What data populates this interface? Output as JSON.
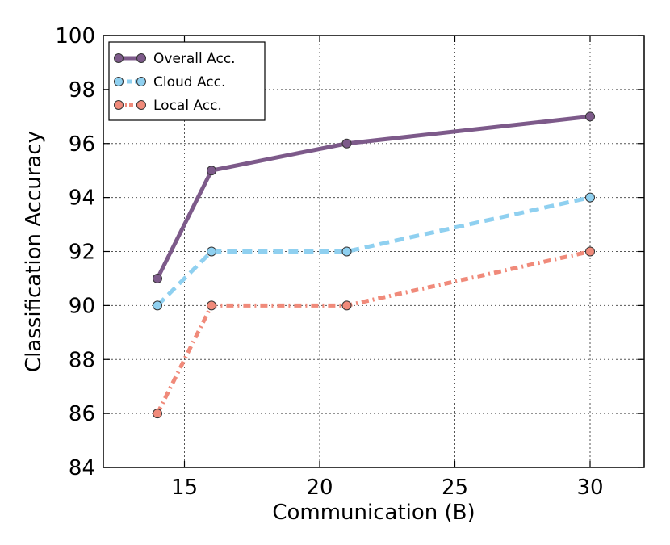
{
  "chart_data": {
    "type": "line",
    "title": "",
    "xlabel": "Communication (B)",
    "ylabel": "Classification Accuracy",
    "xlim": [
      12,
      32
    ],
    "ylim": [
      84,
      100
    ],
    "xticks": [
      15,
      20,
      25,
      30
    ],
    "yticks": [
      84,
      86,
      88,
      90,
      92,
      94,
      96,
      98,
      100
    ],
    "grid": true,
    "legend_position": "top-left",
    "x": [
      14,
      16,
      21,
      30
    ],
    "series": [
      {
        "name": "Overall Acc.",
        "values": [
          91,
          95,
          96,
          97
        ],
        "color": "#7d5a8a",
        "line_style": "solid"
      },
      {
        "name": "Cloud Acc.",
        "values": [
          90,
          92,
          92,
          94
        ],
        "color": "#8fd0f0",
        "line_style": "dashed"
      },
      {
        "name": "Local Acc.",
        "values": [
          86,
          90,
          90,
          92
        ],
        "color": "#f08a7a",
        "line_style": "dashdot"
      }
    ]
  }
}
